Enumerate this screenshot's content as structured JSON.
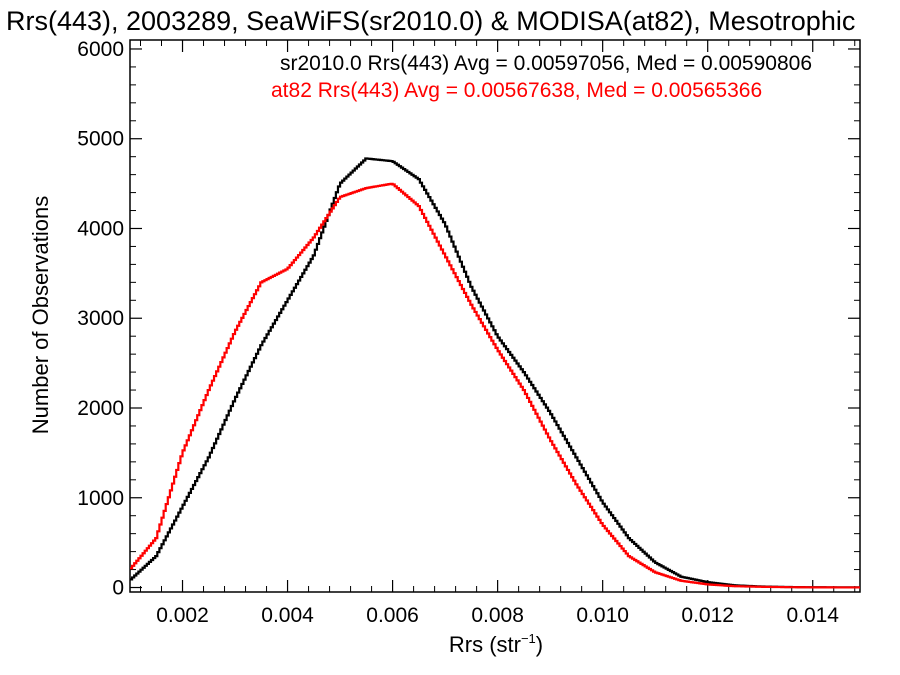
{
  "chart_data": {
    "type": "line",
    "title": "Rrs(443), 2003289, SeaWiFS(sr2010.0) & MODISA(at82), Mesotrophic",
    "xlabel_main": "Rrs (str",
    "xlabel_sup": "−1",
    "xlabel_close": ")",
    "ylabel": "Number of Observations",
    "xlim": [
      0.001,
      0.0149
    ],
    "ylim": [
      -50,
      6100
    ],
    "x_ticks": [
      0.002,
      0.004,
      0.006,
      0.008,
      0.01,
      0.012,
      0.014
    ],
    "x_tick_labels": [
      "0.002",
      "0.004",
      "0.006",
      "0.008",
      "0.010",
      "0.012",
      "0.014"
    ],
    "y_ticks": [
      0,
      1000,
      2000,
      3000,
      4000,
      5000,
      6000
    ],
    "y_tick_labels": [
      "0",
      "1000",
      "2000",
      "3000",
      "4000",
      "5000",
      "6000"
    ],
    "grid": false,
    "legend_placement": "top-right",
    "series": [
      {
        "name": "sr2010.0 Rrs(443) Avg = 0.00597056, Med = 0.00590806",
        "color": "#000000",
        "x": [
          0.001,
          0.0015,
          0.002,
          0.0025,
          0.003,
          0.0035,
          0.004,
          0.0045,
          0.005,
          0.0055,
          0.006,
          0.0065,
          0.007,
          0.0075,
          0.008,
          0.0085,
          0.009,
          0.0095,
          0.01,
          0.0105,
          0.011,
          0.0115,
          0.012,
          0.0125,
          0.013,
          0.0135,
          0.014,
          0.0145,
          0.0149
        ],
        "y": [
          80,
          350,
          900,
          1450,
          2100,
          2700,
          3200,
          3700,
          4500,
          4780,
          4750,
          4550,
          4050,
          3350,
          2800,
          2400,
          1950,
          1450,
          950,
          550,
          280,
          120,
          60,
          25,
          12,
          6,
          3,
          2,
          1
        ]
      },
      {
        "name": "at82 Rrs(443) Avg = 0.00567638, Med = 0.00565366",
        "color": "#ff0000",
        "x": [
          0.001,
          0.0015,
          0.002,
          0.0025,
          0.003,
          0.0035,
          0.004,
          0.0045,
          0.005,
          0.0055,
          0.006,
          0.0065,
          0.007,
          0.0075,
          0.008,
          0.0085,
          0.009,
          0.0095,
          0.01,
          0.0105,
          0.011,
          0.0115,
          0.012,
          0.0125,
          0.013,
          0.0135,
          0.014,
          0.0145,
          0.0149
        ],
        "y": [
          200,
          550,
          1500,
          2200,
          2850,
          3400,
          3550,
          3900,
          4350,
          4450,
          4500,
          4250,
          3700,
          3150,
          2650,
          2200,
          1650,
          1150,
          700,
          350,
          170,
          75,
          35,
          15,
          8,
          4,
          2,
          1,
          1
        ]
      }
    ]
  }
}
